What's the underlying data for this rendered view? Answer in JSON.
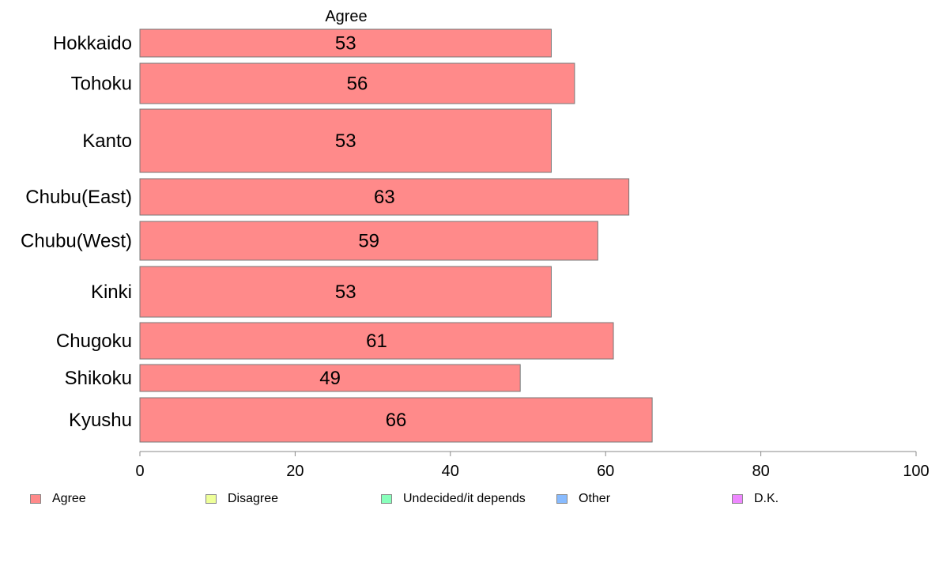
{
  "chart_data": {
    "type": "bar",
    "orientation": "horizontal",
    "title": "Agree",
    "categories": [
      "Hokkaido",
      "Tohoku",
      "Kanto",
      "Chubu(East)",
      "Chubu(West)",
      "Kinki",
      "Chugoku",
      "Shikoku",
      "Kyushu"
    ],
    "series": [
      {
        "name": "Agree",
        "values": [
          53,
          56,
          53,
          63,
          59,
          53,
          61,
          49,
          66
        ],
        "color": "#ff8a8a"
      }
    ],
    "xlim": [
      0,
      100
    ],
    "xticks": [
      "0",
      "20",
      "40",
      "60",
      "80",
      "100"
    ],
    "grid": false,
    "legend_position": "bottom",
    "legend": [
      {
        "label": "Agree",
        "color": "#ff8a8a"
      },
      {
        "label": "Disagree",
        "color": "#eeff99"
      },
      {
        "label": "Undecided/it depends",
        "color": "#88ffbb"
      },
      {
        "label": "Other",
        "color": "#88bbff"
      },
      {
        "label": "D.K.",
        "color": "#ee88ff"
      }
    ]
  }
}
